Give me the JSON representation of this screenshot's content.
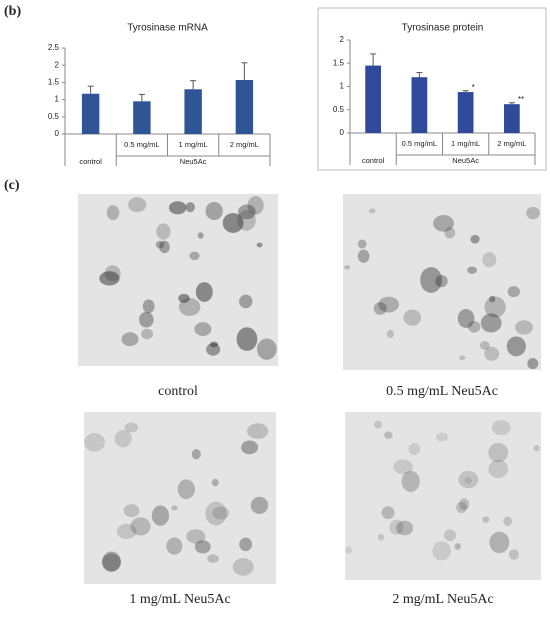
{
  "panel_labels": [
    "(b)",
    "(c)"
  ],
  "chart_data": [
    {
      "type": "bar",
      "title": "Tyrosinase mRNA",
      "categories": [
        "control",
        "0.5 mg/mL",
        "1 mg/mL",
        "2 mg/mL"
      ],
      "group_label": "Neu5Ac",
      "values": [
        1.17,
        0.95,
        1.3,
        1.57
      ],
      "errors": [
        0.22,
        0.2,
        0.25,
        0.5
      ],
      "color": "#2f5597",
      "ylim": [
        0,
        2.5
      ],
      "yticks": [
        0,
        0.5,
        1,
        1.5,
        2,
        2.5
      ],
      "grid": false
    },
    {
      "type": "bar",
      "title": "Tyrosinase protein",
      "categories": [
        "control",
        "0.5 mg/mL",
        "1 mg/mL",
        "2 mg/mL"
      ],
      "group_label": "Neu5Ac",
      "values": [
        1.45,
        1.2,
        0.88,
        0.62
      ],
      "errors": [
        0.25,
        0.1,
        0.03,
        0.03
      ],
      "color": "#2f4a9a",
      "bar_annotations": [
        null,
        null,
        "*",
        "**"
      ],
      "ylim": [
        0,
        2
      ],
      "yticks": [
        0,
        0.5,
        1,
        1.5,
        2
      ],
      "grid": false
    }
  ],
  "images": [
    {
      "caption": "control"
    },
    {
      "caption": "0.5 mg/mL Neu5Ac"
    },
    {
      "caption": "1 mg/mL Neu5Ac"
    },
    {
      "caption": "2 mg/mL Neu5Ac"
    }
  ]
}
